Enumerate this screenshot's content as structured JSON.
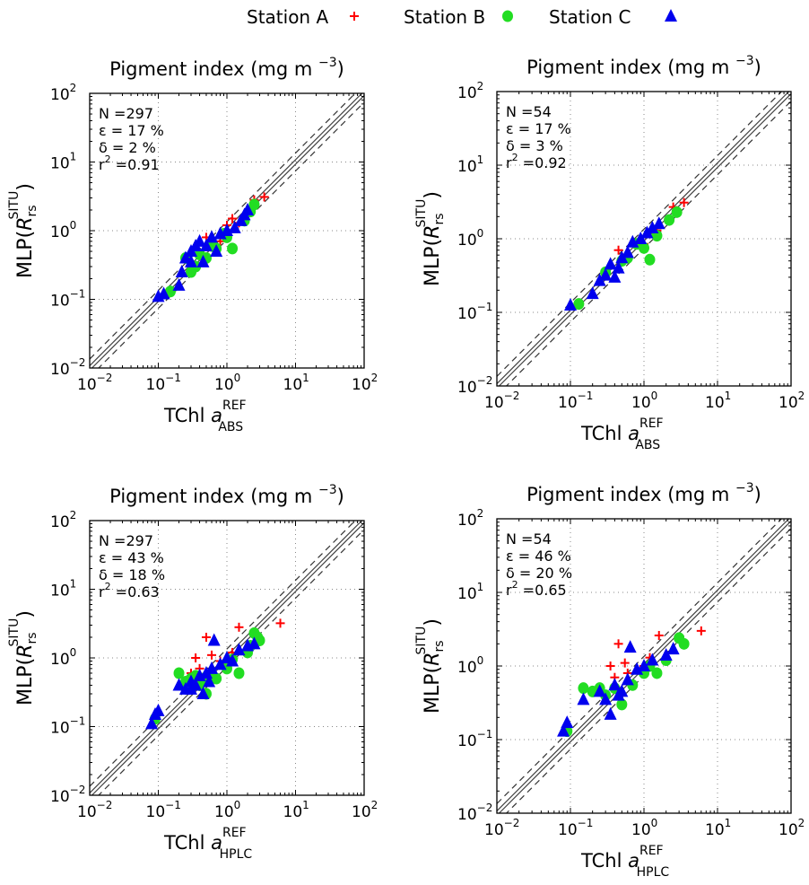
{
  "legend": {
    "items": [
      {
        "label": "Station A",
        "marker": "plus",
        "color": "#ff0000"
      },
      {
        "label": "Station B",
        "marker": "circle",
        "color": "#22dd22"
      },
      {
        "label": "Station C",
        "marker": "triangle",
        "color": "#0000ee"
      }
    ]
  },
  "chart_data": [
    {
      "type": "scatter",
      "title": "Pigment index (mg m ",
      "title_sup": "−3",
      "title_end": ")",
      "ylabel": "MLP(",
      "ylabel_italic": "R",
      "ylabel_sub": "rs",
      "ylabel_sup": "SITU",
      "ylabel_end": ")",
      "xlabel": "TChl ",
      "xlabel_italic": "a",
      "xlabel_sup": "REF",
      "xlabel_sub": "ABS",
      "xscale": "log",
      "yscale": "log",
      "xlim": [
        0.01,
        100
      ],
      "ylim": [
        0.01,
        100
      ],
      "xticks": [
        "10",
        "10",
        "10",
        "10",
        "10"
      ],
      "xtick_exponents": [
        "−2",
        "−1",
        "0",
        "1",
        "2"
      ],
      "grid": true,
      "stats": [
        {
          "label": "N =297"
        },
        {
          "label": "ε = 17 %"
        },
        {
          "label": "δ = 2 %"
        },
        {
          "label": "r",
          "sup": "2",
          "rest": " =0.91"
        }
      ],
      "reference_lines": [
        "1:1 solid",
        "±factor dashed"
      ],
      "series": [
        {
          "name": "Station A",
          "points": [
            [
              0.5,
              0.8
            ],
            [
              1.2,
              1.5
            ],
            [
              2.5,
              2.8
            ],
            [
              3.5,
              3.1
            ],
            [
              0.8,
              0.7
            ],
            [
              1.5,
              1.3
            ],
            [
              1.0,
              1.2
            ]
          ]
        },
        {
          "name": "Station B",
          "points": [
            [
              0.15,
              0.13
            ],
            [
              0.3,
              0.25
            ],
            [
              0.5,
              0.4
            ],
            [
              0.7,
              0.55
            ],
            [
              1.2,
              0.55
            ],
            [
              1.0,
              0.8
            ],
            [
              1.8,
              1.4
            ],
            [
              2.2,
              1.9
            ],
            [
              0.25,
              0.4
            ],
            [
              0.4,
              0.45
            ],
            [
              0.6,
              0.6
            ],
            [
              2.5,
              2.4
            ],
            [
              0.35,
              0.3
            ],
            [
              0.9,
              0.9
            ]
          ]
        },
        {
          "name": "Station C",
          "points": [
            [
              0.1,
              0.11
            ],
            [
              0.12,
              0.12
            ],
            [
              0.2,
              0.16
            ],
            [
              0.22,
              0.25
            ],
            [
              0.25,
              0.4
            ],
            [
              0.3,
              0.5
            ],
            [
              0.35,
              0.6
            ],
            [
              0.4,
              0.7
            ],
            [
              0.5,
              0.6
            ],
            [
              0.6,
              0.8
            ],
            [
              0.8,
              0.9
            ],
            [
              1.0,
              1.0
            ],
            [
              1.3,
              1.1
            ],
            [
              1.6,
              1.4
            ],
            [
              1.8,
              1.7
            ],
            [
              2.0,
              2.0
            ],
            [
              0.45,
              0.35
            ],
            [
              0.3,
              0.35
            ],
            [
              0.7,
              0.5
            ]
          ]
        }
      ]
    },
    {
      "type": "scatter",
      "title": "Pigment index (mg m ",
      "title_sup": "−3",
      "title_end": ")",
      "ylabel": "MLP(",
      "ylabel_italic": "R",
      "ylabel_sub": "rs",
      "ylabel_sup": "SITU",
      "ylabel_end": ")",
      "xlabel": "TChl ",
      "xlabel_italic": "a",
      "xlabel_sup": "REF",
      "xlabel_sub": "ABS",
      "xscale": "log",
      "yscale": "log",
      "xlim": [
        0.01,
        100
      ],
      "ylim": [
        0.01,
        100
      ],
      "xticks": [
        "10",
        "10",
        "10",
        "10",
        "10"
      ],
      "xtick_exponents": [
        "−2",
        "−1",
        "0",
        "1",
        "2"
      ],
      "grid": true,
      "stats": [
        {
          "label": "N =54"
        },
        {
          "label": "ε = 17 %"
        },
        {
          "label": "δ = 3 %"
        },
        {
          "label": "r",
          "sup": "2",
          "rest": " =0.92"
        }
      ],
      "reference_lines": [
        "1:1 solid",
        "±factor dashed"
      ],
      "series": [
        {
          "name": "Station A",
          "points": [
            [
              0.45,
              0.7
            ],
            [
              1.0,
              0.85
            ],
            [
              2.5,
              2.7
            ],
            [
              3.5,
              3.1
            ],
            [
              0.6,
              0.6
            ],
            [
              1.5,
              1.3
            ]
          ]
        },
        {
          "name": "Station B",
          "points": [
            [
              0.13,
              0.13
            ],
            [
              0.3,
              0.35
            ],
            [
              0.6,
              0.55
            ],
            [
              1.0,
              0.75
            ],
            [
              1.2,
              0.52
            ],
            [
              1.5,
              1.1
            ],
            [
              2.2,
              1.8
            ],
            [
              0.5,
              0.5
            ],
            [
              0.8,
              0.85
            ],
            [
              2.8,
              2.3
            ]
          ]
        },
        {
          "name": "Station C",
          "points": [
            [
              0.1,
              0.125
            ],
            [
              0.2,
              0.18
            ],
            [
              0.3,
              0.32
            ],
            [
              0.35,
              0.45
            ],
            [
              0.45,
              0.4
            ],
            [
              0.5,
              0.55
            ],
            [
              0.6,
              0.65
            ],
            [
              0.7,
              0.9
            ],
            [
              0.9,
              1.0
            ],
            [
              1.1,
              1.2
            ],
            [
              1.3,
              1.4
            ],
            [
              1.6,
              1.6
            ],
            [
              0.4,
              0.3
            ],
            [
              0.25,
              0.27
            ]
          ]
        }
      ]
    },
    {
      "type": "scatter",
      "title": "Pigment index (mg m ",
      "title_sup": "−3",
      "title_end": ")",
      "ylabel": "MLP(",
      "ylabel_italic": "R",
      "ylabel_sub": "rs",
      "ylabel_sup": "SITU",
      "ylabel_end": ")",
      "xlabel": "TChl ",
      "xlabel_italic": "a",
      "xlabel_sup": "REF",
      "xlabel_sub": "HPLC",
      "xscale": "log",
      "yscale": "log",
      "xlim": [
        0.01,
        100
      ],
      "ylim": [
        0.01,
        100
      ],
      "xticks": [
        "10",
        "10",
        "10",
        "10",
        "10"
      ],
      "xtick_exponents": [
        "−2",
        "−1",
        "0",
        "1",
        "2"
      ],
      "grid": true,
      "stats": [
        {
          "label": "N =297"
        },
        {
          "label": "ε = 43 %"
        },
        {
          "label": "δ = 18 %"
        },
        {
          "label": "r",
          "sup": "2",
          "rest": " =0.63"
        }
      ],
      "reference_lines": [
        "1:1 solid",
        "±factor dashed"
      ],
      "series": [
        {
          "name": "Station A",
          "points": [
            [
              0.35,
              1.0
            ],
            [
              0.5,
              2.0
            ],
            [
              0.6,
              1.1
            ],
            [
              0.4,
              0.7
            ],
            [
              1.5,
              2.8
            ],
            [
              6.0,
              3.2
            ],
            [
              0.8,
              0.9
            ],
            [
              1.2,
              1.2
            ],
            [
              0.3,
              0.6
            ],
            [
              0.55,
              0.5
            ]
          ]
        },
        {
          "name": "Station B",
          "points": [
            [
              0.2,
              0.6
            ],
            [
              0.25,
              0.45
            ],
            [
              0.3,
              0.5
            ],
            [
              0.4,
              0.4
            ],
            [
              0.5,
              0.3
            ],
            [
              0.7,
              0.5
            ],
            [
              1.0,
              0.7
            ],
            [
              1.5,
              0.6
            ],
            [
              2.0,
              1.2
            ],
            [
              2.5,
              2.3
            ],
            [
              3.0,
              1.8
            ],
            [
              2.8,
              2.0
            ],
            [
              0.35,
              0.55
            ],
            [
              1.2,
              0.95
            ],
            [
              0.6,
              0.55
            ],
            [
              0.09,
              0.13
            ],
            [
              0.45,
              0.5
            ],
            [
              2.2,
              1.5
            ]
          ]
        },
        {
          "name": "Station C",
          "points": [
            [
              0.08,
              0.11
            ],
            [
              0.09,
              0.15
            ],
            [
              0.1,
              0.17
            ],
            [
              0.2,
              0.4
            ],
            [
              0.25,
              0.35
            ],
            [
              0.3,
              0.45
            ],
            [
              0.35,
              0.4
            ],
            [
              0.4,
              0.55
            ],
            [
              0.45,
              0.3
            ],
            [
              0.5,
              0.6
            ],
            [
              0.6,
              0.7
            ],
            [
              0.65,
              1.8
            ],
            [
              0.8,
              0.8
            ],
            [
              1.0,
              1.0
            ],
            [
              1.2,
              0.9
            ],
            [
              1.5,
              1.3
            ],
            [
              2.0,
              1.5
            ],
            [
              2.5,
              1.6
            ],
            [
              0.3,
              0.35
            ],
            [
              0.55,
              0.45
            ]
          ]
        }
      ]
    },
    {
      "type": "scatter",
      "title": "Pigment index (mg m ",
      "title_sup": "−3",
      "title_end": ")",
      "ylabel": "MLP(",
      "ylabel_italic": "R",
      "ylabel_sub": "rs",
      "ylabel_sup": "SITU",
      "ylabel_end": ")",
      "xlabel": "TChl ",
      "xlabel_italic": "a",
      "xlabel_sup": "REF",
      "xlabel_sub": "HPLC",
      "xscale": "log",
      "yscale": "log",
      "xlim": [
        0.01,
        100
      ],
      "ylim": [
        0.01,
        100
      ],
      "xticks": [
        "10",
        "10",
        "10",
        "10",
        "10"
      ],
      "xtick_exponents": [
        "−2",
        "−1",
        "0",
        "1",
        "2"
      ],
      "grid": true,
      "stats": [
        {
          "label": "N =54"
        },
        {
          "label": "ε = 46 %"
        },
        {
          "label": "δ = 20 %"
        },
        {
          "label": "r",
          "sup": "2",
          "rest": " =0.65"
        }
      ],
      "reference_lines": [
        "1:1 solid",
        "±factor dashed"
      ],
      "series": [
        {
          "name": "Station A",
          "points": [
            [
              0.35,
              1.0
            ],
            [
              0.45,
              2.0
            ],
            [
              0.55,
              1.1
            ],
            [
              0.6,
              0.8
            ],
            [
              1.6,
              2.6
            ],
            [
              6.0,
              3.0
            ],
            [
              1.0,
              1.0
            ],
            [
              0.4,
              0.7
            ],
            [
              1.2,
              1.3
            ]
          ]
        },
        {
          "name": "Station B",
          "points": [
            [
              0.15,
              0.5
            ],
            [
              0.2,
              0.45
            ],
            [
              0.25,
              0.5
            ],
            [
              0.3,
              0.4
            ],
            [
              0.5,
              0.3
            ],
            [
              0.7,
              0.55
            ],
            [
              1.0,
              0.8
            ],
            [
              1.5,
              0.8
            ],
            [
              2.0,
              1.2
            ],
            [
              3.0,
              2.4
            ],
            [
              3.5,
              2.0
            ],
            [
              0.4,
              0.5
            ],
            [
              0.09,
              0.13
            ],
            [
              1.2,
              1.0
            ]
          ]
        },
        {
          "name": "Station C",
          "points": [
            [
              0.08,
              0.13
            ],
            [
              0.09,
              0.17
            ],
            [
              0.15,
              0.35
            ],
            [
              0.25,
              0.45
            ],
            [
              0.3,
              0.35
            ],
            [
              0.35,
              0.22
            ],
            [
              0.4,
              0.55
            ],
            [
              0.5,
              0.45
            ],
            [
              0.6,
              0.65
            ],
            [
              0.65,
              1.8
            ],
            [
              0.8,
              0.9
            ],
            [
              1.0,
              1.0
            ],
            [
              1.3,
              1.2
            ],
            [
              2.0,
              1.4
            ],
            [
              2.5,
              1.7
            ],
            [
              0.45,
              0.4
            ]
          ]
        }
      ]
    }
  ]
}
